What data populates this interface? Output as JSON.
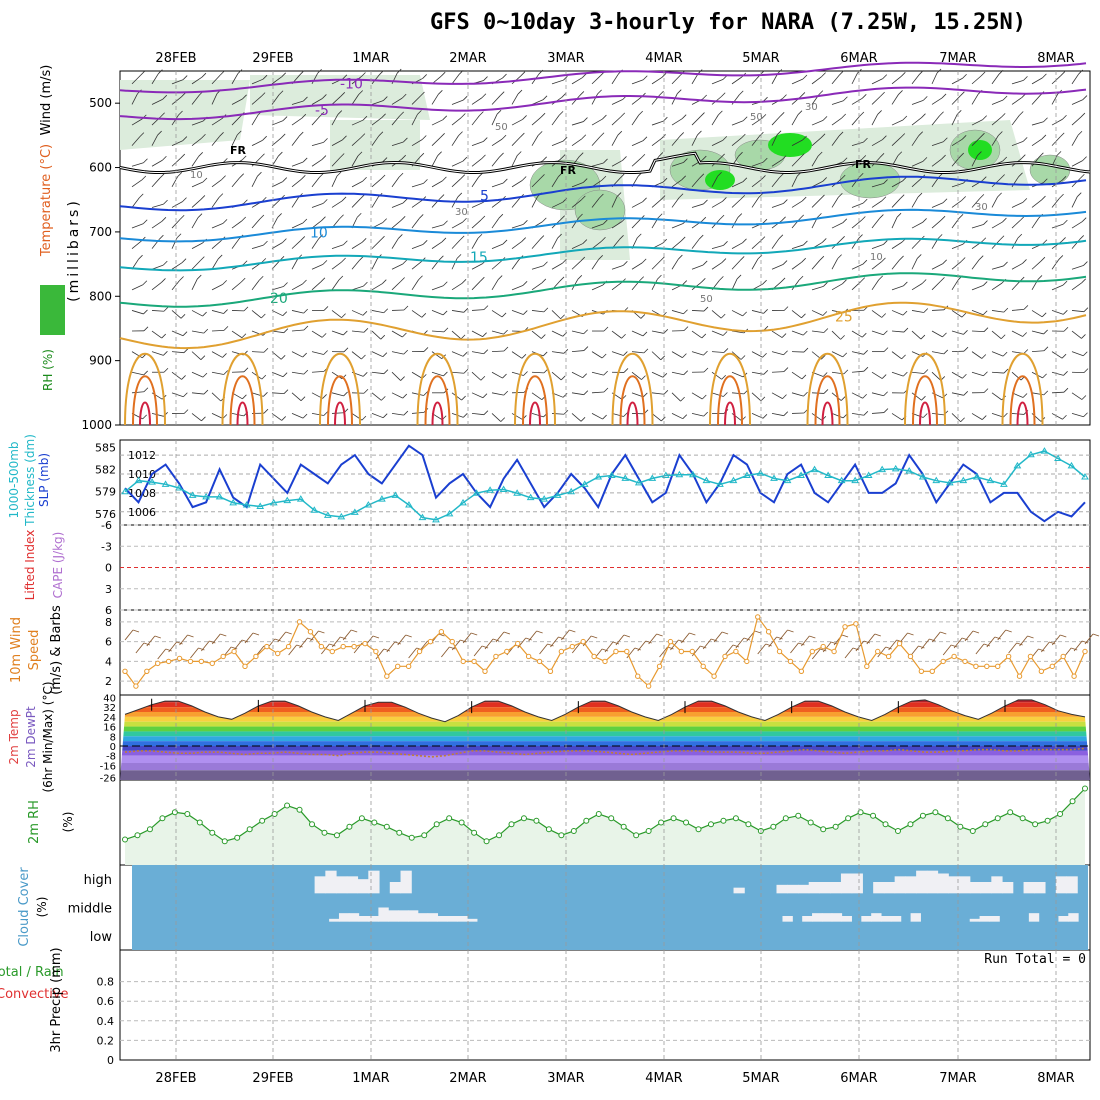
{
  "title": "GFS 0~10day 3-hourly for NARA (7.25W, 15.25N)",
  "date_labels": [
    "28FEB",
    "29FEB",
    "1MAR",
    "2MAR",
    "3MAR",
    "4MAR",
    "5MAR",
    "6MAR",
    "7MAR",
    "8MAR"
  ],
  "panel_labels": {
    "p1_rh": "RH (%)",
    "p1_temp": "Temperature (°C)",
    "p1_wind": "Wind (m/s)",
    "p1_mb": "(millibars)",
    "p2_thk1": "1000-500mb",
    "p2_thk2": "Thickness (dm)",
    "p2_slp": "SLP (mb)",
    "p3_li": "Lifted Index",
    "p3_cape": "CAPE (J/kg)",
    "p4_wind1": "10m Wind",
    "p4_wind2": "Speed",
    "p4_wind3": "(m/s) & Barbs",
    "p5_temp": "2m Temp",
    "p5_dew": "2m DewPt",
    "p5_minmax": "(6hr Min/Max) (°C)",
    "p6_rh": "2m RH",
    "p6_unit": "(%)",
    "p7_cloud": "Cloud Cover",
    "p7_unit": "(%)",
    "p8_total": "Total / Rain",
    "p8_conv": "Convective",
    "p8_precip": "3hr Precip (mm)",
    "run_total": "Run Total = 0"
  },
  "colors": {
    "slp": "#1a3fd0",
    "thickness": "#22b8c8",
    "lifted_index": "#e03030",
    "wind_speed": "#e89a30",
    "rh2m": "#2a9a2a",
    "cloud": "#6aaed6",
    "cloud_fill": "#f0f0f4"
  },
  "chart_data": [
    {
      "type": "contour",
      "name": "profile",
      "y_ticks": [
        "500",
        "600",
        "700",
        "800",
        "900",
        "1000"
      ],
      "y_axis": "millibars",
      "y_range": [
        450,
        1000
      ],
      "freezing_level_label": "FR",
      "temp_contour_labels": [
        "-10",
        "-5",
        "-5",
        "5",
        "10",
        "10",
        "15",
        "15",
        "20",
        "20",
        "25"
      ],
      "rh_contour_labels": [
        "10",
        "30",
        "50",
        "50",
        "30",
        "10",
        "50",
        "30"
      ]
    },
    {
      "type": "line",
      "name": "slp_thickness",
      "slp_ticks": [
        "1006",
        "1008",
        "1010",
        "1012"
      ],
      "thickness_ticks": [
        "576",
        "579",
        "582",
        "585"
      ],
      "slp_range": [
        1004.6,
        1013.6
      ],
      "thickness_range": [
        574.5,
        586
      ],
      "slp": [
        1008.5,
        1007,
        1010,
        1011,
        1009,
        1006.5,
        1007,
        1010.5,
        1007.5,
        1006.5,
        1011,
        1009.5,
        1008,
        1011,
        1010,
        1009,
        1011,
        1012,
        1010,
        1009,
        1011,
        1013,
        1012,
        1007.5,
        1009,
        1010,
        1008,
        1006.5,
        1009.5,
        1011.5,
        1009,
        1006.5,
        1008,
        1010,
        1008.5,
        1006.5,
        1010,
        1012,
        1009.5,
        1007,
        1008,
        1012,
        1010,
        1007,
        1009,
        1012,
        1011,
        1008,
        1007,
        1010,
        1011,
        1008,
        1007,
        1009,
        1011,
        1008,
        1008,
        1009,
        1012,
        1010,
        1007,
        1009,
        1011,
        1010,
        1007,
        1008,
        1008,
        1006,
        1005,
        1006,
        1005.5,
        1007
      ],
      "thickness": [
        579,
        580.5,
        580.3,
        580,
        579.5,
        578.5,
        578.3,
        578.3,
        577.5,
        577.2,
        577,
        577.5,
        577.8,
        578,
        576.5,
        575.8,
        575.6,
        576.2,
        577.2,
        578,
        578.5,
        577.2,
        575.5,
        575.2,
        576,
        577.5,
        578.8,
        579.2,
        579.3,
        578.8,
        578.2,
        578,
        578.5,
        579,
        580,
        581,
        581.2,
        580.8,
        580.2,
        580.8,
        581.2,
        581.3,
        581.3,
        580.5,
        580,
        580.5,
        581.2,
        581.5,
        580.8,
        580.5,
        581.2,
        582,
        581.2,
        580.5,
        580.5,
        581.2,
        582,
        582.1,
        581.8,
        581,
        580.5,
        580.2,
        580.5,
        581,
        580.5,
        580,
        582.5,
        584,
        584.5,
        583.5,
        582.5,
        581
      ]
    },
    {
      "type": "line",
      "name": "lifted_index_cape",
      "y_ticks": [
        "-6",
        "-3",
        "0",
        "3",
        "6"
      ],
      "y_range": [
        -6,
        6
      ],
      "lifted_index": [
        0
      ]
    },
    {
      "type": "line",
      "name": "wind10m",
      "y_ticks": [
        "2",
        "4",
        "6",
        "8"
      ],
      "y_range": [
        0.6,
        9.2
      ],
      "speed": [
        3,
        1.5,
        3,
        3.8,
        4,
        4.3,
        4,
        4,
        3.8,
        4.5,
        5,
        3.5,
        4.5,
        5.5,
        4.8,
        5.5,
        8,
        7,
        5.5,
        5,
        5.5,
        5.5,
        5.8,
        5,
        2.5,
        3.5,
        3.5,
        5,
        6,
        7,
        6,
        4,
        4,
        3,
        4.5,
        5,
        5.8,
        4.5,
        4,
        3,
        5,
        5.5,
        6,
        4.5,
        4,
        5,
        5,
        2.5,
        1.5,
        3.5,
        6,
        5,
        5,
        3.5,
        2.5,
        4.5,
        5,
        4,
        8.5,
        7,
        5,
        4,
        3,
        5,
        5.5,
        5,
        7.5,
        7.8,
        3.5,
        5,
        4.5,
        5.8,
        4.5,
        3,
        3,
        4,
        4.5,
        4,
        3.5,
        3.5,
        3.5,
        4.5,
        2.5,
        4.5,
        3,
        3.5,
        4.5,
        2.5,
        5
      ]
    },
    {
      "type": "area",
      "name": "temp2m",
      "y_ticks": [
        "40",
        "32",
        "24",
        "16",
        "8",
        "0",
        "-8",
        "-16",
        "-26"
      ],
      "y_range": [
        -28,
        42
      ],
      "temperature": [
        26,
        30,
        34,
        37,
        37,
        33,
        28,
        24,
        22,
        27,
        33,
        37,
        37,
        33,
        28,
        24,
        21,
        27,
        33,
        36,
        36,
        32,
        27,
        23,
        20,
        25,
        32,
        37,
        37,
        33,
        28,
        24,
        21,
        26,
        32,
        37,
        37,
        33,
        28,
        24,
        21,
        26,
        32,
        37,
        37,
        33,
        28,
        24,
        21,
        26,
        32,
        37,
        37,
        33,
        28,
        24,
        21,
        26,
        32,
        37,
        38,
        34,
        29,
        25,
        22,
        27,
        33,
        38,
        38,
        34,
        29,
        26,
        24
      ],
      "dewpoint": [
        -5,
        -4,
        -4,
        -5,
        -6,
        -6,
        -5,
        -5,
        -6,
        -7,
        -6,
        -6,
        -5,
        -6,
        -7,
        -7,
        -8,
        -6,
        -5,
        -5,
        -6,
        -7,
        -8,
        -9,
        -8,
        -6,
        -4,
        -4,
        -5,
        -6,
        -7,
        -6,
        -5,
        -4,
        -4,
        -4,
        -5,
        -6,
        -7,
        -6,
        -5,
        -4,
        -4,
        -4,
        -5,
        -5,
        -5,
        -6,
        -6,
        -5,
        -4,
        -3,
        -4,
        -5,
        -6,
        -5,
        -4,
        -4,
        -3,
        -4,
        -5,
        -5,
        -4,
        -4,
        -3,
        -3,
        -4,
        -4,
        -3,
        -3,
        -3,
        -3,
        -2
      ]
    },
    {
      "type": "line",
      "name": "rh2m",
      "y_range": [
        0,
        100
      ],
      "values": [
        30,
        35,
        42,
        55,
        62,
        60,
        50,
        38,
        28,
        32,
        42,
        52,
        60,
        70,
        65,
        48,
        38,
        35,
        45,
        55,
        50,
        45,
        38,
        32,
        35,
        48,
        55,
        50,
        38,
        28,
        35,
        48,
        55,
        52,
        42,
        35,
        40,
        52,
        60,
        55,
        45,
        35,
        40,
        50,
        55,
        50,
        42,
        48,
        52,
        55,
        48,
        40,
        45,
        55,
        58,
        50,
        42,
        45,
        55,
        62,
        58,
        48,
        40,
        48,
        58,
        62,
        55,
        45,
        40,
        48,
        55,
        62,
        55,
        48,
        52,
        60,
        75,
        90
      ]
    },
    {
      "type": "heatmap",
      "name": "cloud_cover",
      "y_ticks": [
        "high",
        "middle",
        "low"
      ],
      "high": [
        0,
        0,
        0,
        0,
        0,
        0,
        0,
        0,
        0,
        0,
        0,
        0,
        0,
        0,
        0,
        0,
        0,
        60,
        80,
        60,
        60,
        50,
        80,
        0,
        40,
        80,
        0,
        0,
        0,
        0,
        0,
        0,
        0,
        0,
        0,
        0,
        0,
        0,
        0,
        0,
        0,
        0,
        0,
        0,
        0,
        0,
        0,
        0,
        0,
        0,
        0,
        0,
        0,
        0,
        0,
        0,
        20,
        0,
        0,
        0,
        30,
        30,
        30,
        40,
        40,
        40,
        70,
        70,
        0,
        40,
        40,
        60,
        60,
        80,
        80,
        70,
        60,
        60,
        40,
        40,
        60,
        40,
        0,
        40,
        40,
        0,
        60,
        60,
        0
      ],
      "middle": [
        0,
        0,
        0,
        0,
        0,
        0,
        0,
        0,
        0,
        0,
        0,
        0,
        0,
        0,
        0,
        0,
        0,
        0,
        0,
        0,
        10,
        30,
        30,
        20,
        20,
        50,
        40,
        40,
        40,
        30,
        30,
        20,
        20,
        20,
        10,
        0,
        0,
        0,
        0,
        0,
        0,
        0,
        0,
        0,
        0,
        0,
        0,
        0,
        0,
        0,
        0,
        0,
        0,
        0,
        0,
        0,
        0,
        0,
        0,
        0,
        0,
        0,
        0,
        0,
        0,
        0,
        20,
        0,
        20,
        30,
        30,
        30,
        20,
        0,
        20,
        30,
        20,
        20,
        0,
        30,
        0,
        0,
        0,
        0,
        0,
        10,
        20,
        20,
        0,
        0,
        0,
        30,
        0,
        0,
        20,
        30,
        0
      ]
    },
    {
      "type": "bar",
      "name": "precip",
      "y_ticks": [
        "0",
        "0.2",
        "0.4",
        "0.6",
        "0.8"
      ],
      "y_range": [
        0,
        1
      ],
      "values": [
        0
      ]
    }
  ]
}
